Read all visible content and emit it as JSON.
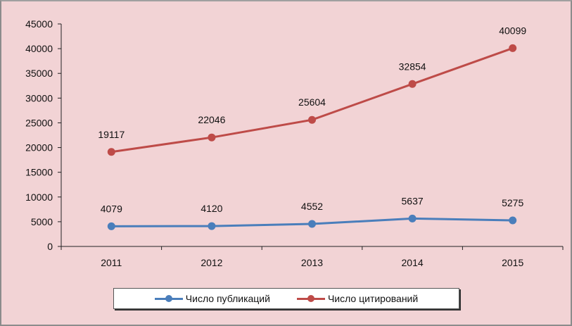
{
  "chart_data": {
    "type": "line",
    "categories": [
      "2011",
      "2012",
      "2013",
      "2014",
      "2015"
    ],
    "series": [
      {
        "name": "Число публикаций",
        "values": [
          4079,
          4120,
          4552,
          5637,
          5275
        ],
        "color": "#4a7ebb"
      },
      {
        "name": "Число цитирований",
        "values": [
          19117,
          22046,
          25604,
          32854,
          40099
        ],
        "color": "#be4b48"
      }
    ],
    "ylim": [
      0,
      45000
    ],
    "yticks": [
      0,
      5000,
      10000,
      15000,
      20000,
      25000,
      30000,
      35000,
      40000,
      45000
    ],
    "grid": false,
    "data_labels": true,
    "legend_position": "bottom",
    "background": "#f2d3d5"
  }
}
